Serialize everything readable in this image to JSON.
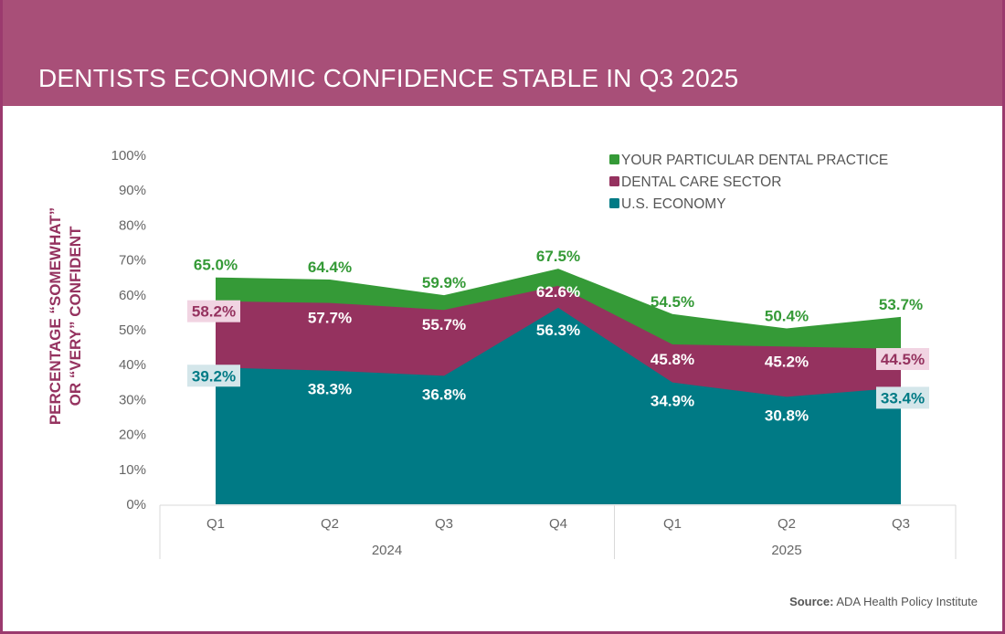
{
  "header": {
    "title": "DENTISTS ECONOMIC CONFIDENCE STABLE IN Q3 2025"
  },
  "source": {
    "label": "Source:",
    "text": " ADA Health Policy Institute"
  },
  "colors": {
    "header_bg": "#a84f78",
    "practice": "#359a37",
    "sector": "#95325f",
    "economy": "#007a85",
    "axis_title": "#95325f",
    "tick_text": "#666666",
    "sector_label_bg": "#f1d4e2",
    "economy_label_bg": "#d4e6ea"
  },
  "chart_data": {
    "type": "area",
    "title": "DENTISTS ECONOMIC CONFIDENCE STABLE IN Q3 2025",
    "xlabel": "",
    "ylabel_lines": [
      "PERCENTAGE “SOMEWHAT”",
      "OR “VERY” CONFIDENT"
    ],
    "categories": [
      "Q1",
      "Q2",
      "Q3",
      "Q4",
      "Q1",
      "Q2",
      "Q3"
    ],
    "groups": [
      {
        "label": "2024",
        "count": 4
      },
      {
        "label": "2025",
        "count": 3
      }
    ],
    "ylim": [
      0,
      100
    ],
    "yticks": [
      "0%",
      "10%",
      "20%",
      "30%",
      "40%",
      "50%",
      "60%",
      "70%",
      "80%",
      "90%",
      "100%"
    ],
    "grid": false,
    "legend_position": "top-right",
    "stacked": false,
    "series": [
      {
        "name": "YOUR PARTICULAR DENTAL PRACTICE",
        "key": "practice",
        "values": [
          65.0,
          64.4,
          59.9,
          67.5,
          54.5,
          50.4,
          53.7
        ],
        "labels": [
          "65.0%",
          "64.4%",
          "59.9%",
          "67.5%",
          "54.5%",
          "50.4%",
          "53.7%"
        ]
      },
      {
        "name": "DENTAL CARE SECTOR",
        "key": "sector",
        "values": [
          58.2,
          57.7,
          55.7,
          62.6,
          45.8,
          45.2,
          44.5
        ],
        "labels": [
          "58.2%",
          "57.7%",
          "55.7%",
          "62.6%",
          "45.8%",
          "45.2%",
          "44.5%"
        ]
      },
      {
        "name": "U.S. ECONOMY",
        "key": "economy",
        "values": [
          39.2,
          38.3,
          36.8,
          56.3,
          34.9,
          30.8,
          33.4
        ],
        "labels": [
          "39.2%",
          "38.3%",
          "36.8%",
          "56.3%",
          "34.9%",
          "30.8%",
          "33.4%"
        ]
      }
    ]
  }
}
